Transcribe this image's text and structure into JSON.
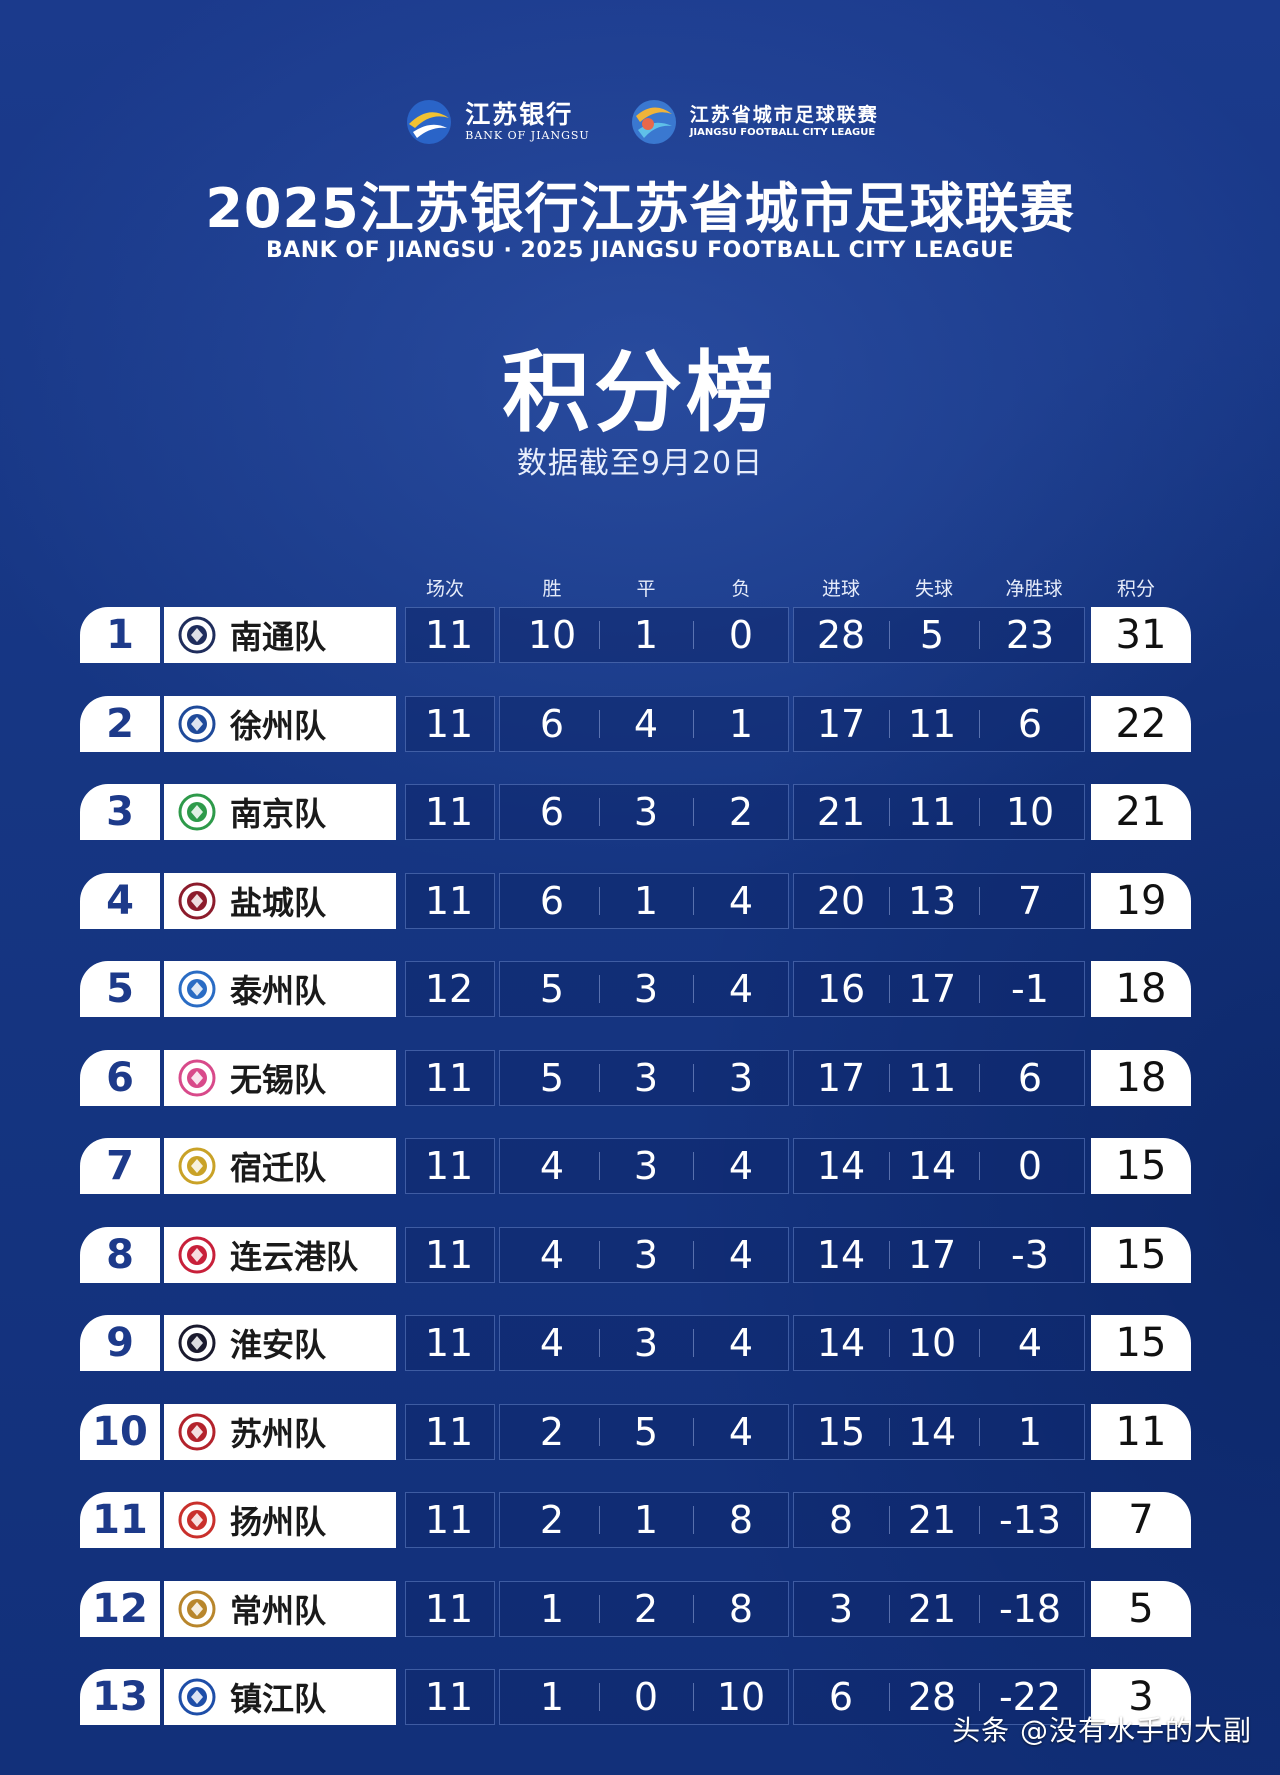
{
  "sponsor_bank": {
    "cn": "江苏银行",
    "en": "BANK OF JIANGSU"
  },
  "sponsor_league": {
    "cn": "江苏省城市足球联赛",
    "en": "JIANGSU FOOTBALL CITY LEAGUE"
  },
  "title": "2025江苏银行江苏省城市足球联赛",
  "subtitle": "BANK OF JIANGSU · 2025 JIANGSU FOOTBALL CITY LEAGUE",
  "standings_title": "积分榜",
  "date_note": "数据截至9月20日",
  "columns": [
    "场次",
    "胜",
    "平",
    "负",
    "进球",
    "失球",
    "净胜球",
    "积分"
  ],
  "teams": [
    {
      "rank": "1",
      "name": "南通队",
      "logo_color": "#1f2d5c",
      "played": "11",
      "won": "10",
      "drawn": "1",
      "lost": "0",
      "gf": "28",
      "ga": "5",
      "gd": "23",
      "pts": "31"
    },
    {
      "rank": "2",
      "name": "徐州队",
      "logo_color": "#1f4a9a",
      "played": "11",
      "won": "6",
      "drawn": "4",
      "lost": "1",
      "gf": "17",
      "ga": "11",
      "gd": "6",
      "pts": "22"
    },
    {
      "rank": "3",
      "name": "南京队",
      "logo_color": "#2e9a4a",
      "played": "11",
      "won": "6",
      "drawn": "3",
      "lost": "2",
      "gf": "21",
      "ga": "11",
      "gd": "10",
      "pts": "21"
    },
    {
      "rank": "4",
      "name": "盐城队",
      "logo_color": "#8c1c2c",
      "played": "11",
      "won": "6",
      "drawn": "1",
      "lost": "4",
      "gf": "20",
      "ga": "13",
      "gd": "7",
      "pts": "19"
    },
    {
      "rank": "5",
      "name": "泰州队",
      "logo_color": "#2a6cc4",
      "played": "12",
      "won": "5",
      "drawn": "3",
      "lost": "4",
      "gf": "16",
      "ga": "17",
      "gd": "-1",
      "pts": "18"
    },
    {
      "rank": "6",
      "name": "无锡队",
      "logo_color": "#d84a8a",
      "played": "11",
      "won": "5",
      "drawn": "3",
      "lost": "3",
      "gf": "17",
      "ga": "11",
      "gd": "6",
      "pts": "18"
    },
    {
      "rank": "7",
      "name": "宿迁队",
      "logo_color": "#c9a227",
      "played": "11",
      "won": "4",
      "drawn": "3",
      "lost": "4",
      "gf": "14",
      "ga": "14",
      "gd": "0",
      "pts": "15"
    },
    {
      "rank": "8",
      "name": "连云港队",
      "logo_color": "#c8203a",
      "played": "11",
      "won": "4",
      "drawn": "3",
      "lost": "4",
      "gf": "14",
      "ga": "17",
      "gd": "-3",
      "pts": "15"
    },
    {
      "rank": "9",
      "name": "淮安队",
      "logo_color": "#1a1a2e",
      "played": "11",
      "won": "4",
      "drawn": "3",
      "lost": "4",
      "gf": "14",
      "ga": "10",
      "gd": "4",
      "pts": "15"
    },
    {
      "rank": "10",
      "name": "苏州队",
      "logo_color": "#b3232c",
      "played": "11",
      "won": "2",
      "drawn": "5",
      "lost": "4",
      "gf": "15",
      "ga": "14",
      "gd": "1",
      "pts": "11"
    },
    {
      "rank": "11",
      "name": "扬州队",
      "logo_color": "#c9302c",
      "played": "11",
      "won": "2",
      "drawn": "1",
      "lost": "8",
      "gf": "8",
      "ga": "21",
      "gd": "-13",
      "pts": "7"
    },
    {
      "rank": "12",
      "name": "常州队",
      "logo_color": "#b8862c",
      "played": "11",
      "won": "1",
      "drawn": "2",
      "lost": "8",
      "gf": "3",
      "ga": "21",
      "gd": "-18",
      "pts": "5"
    },
    {
      "rank": "13",
      "name": "镇江队",
      "logo_color": "#1e4ea8",
      "played": "11",
      "won": "1",
      "drawn": "0",
      "lost": "10",
      "gf": "6",
      "ga": "28",
      "gd": "-22",
      "pts": "3"
    }
  ],
  "watermark": "头条 @没有水手的大副",
  "colors": {
    "background": "#163683",
    "rank_text": "#1d3a8a",
    "panel": "#ffffff"
  }
}
